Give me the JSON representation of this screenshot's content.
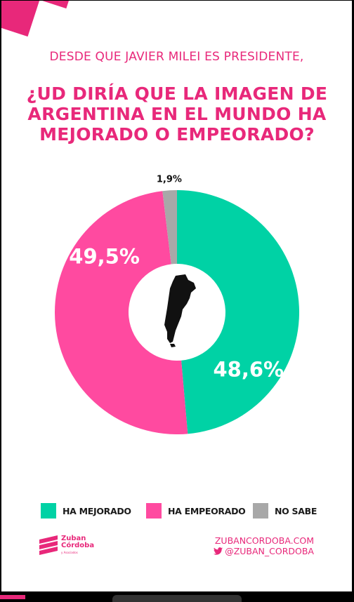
{
  "header": {
    "subtitle": "DESDE QUE JAVIER MILEI ES PRESIDENTE,",
    "title_lines": [
      "¿UD DIRÍA QUE LA IMAGEN DE",
      "ARGENTINA EN EL MUNDO HA",
      "MEJORADO O EMPEORADO?"
    ]
  },
  "chart_data": {
    "type": "pie",
    "donut": true,
    "slices": [
      {
        "label": "HA MEJORADO",
        "value": 48.6,
        "display": "48,6%",
        "color": "#00d2a5"
      },
      {
        "label": "HA EMPEORADO",
        "value": 49.5,
        "display": "49,5%",
        "color": "#ff4aa0"
      },
      {
        "label": "NO SABE",
        "value": 1.9,
        "display": "1,9%",
        "color": "#a8a8a8"
      }
    ],
    "legend_position": "bottom"
  },
  "footer": {
    "logo": {
      "line1": "Zuban",
      "line2": "Córdoba",
      "line3": "y Asociados"
    },
    "website": "ZUBANCORDOBA.COM",
    "handle": "@ZUBAN_CORDOBA",
    "handle_icon": "twitter-icon"
  },
  "colors": {
    "accent": "#e8287a"
  }
}
